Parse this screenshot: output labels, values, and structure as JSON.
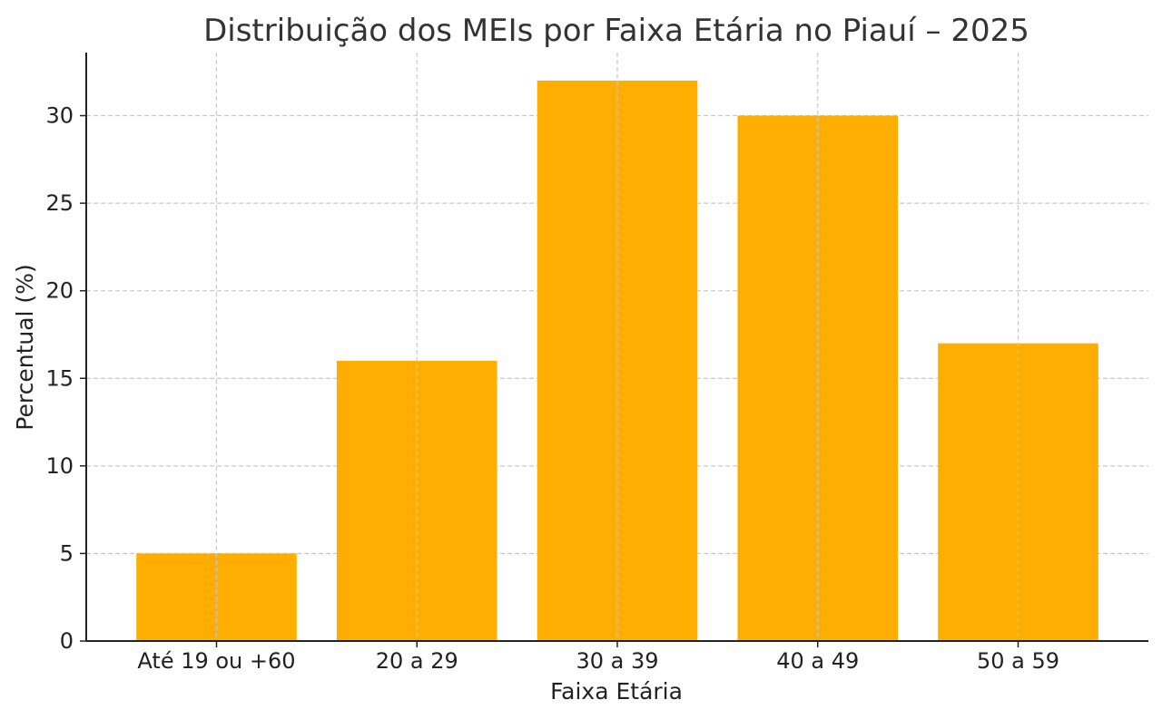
{
  "chart_data": {
    "type": "bar",
    "title": "Distribuição dos MEIs por Faixa Etária no Piauí – 2025",
    "xlabel": "Faixa Etária",
    "ylabel": "Percentual (%)",
    "categories": [
      "Até 19 ou +60",
      "20 a 29",
      "30 a 39",
      "40 a 49",
      "50 a 59"
    ],
    "values": [
      5,
      16,
      32,
      30,
      17
    ],
    "ylim": [
      0,
      33.6
    ],
    "yticks": [
      0,
      5,
      10,
      15,
      20,
      25,
      30
    ],
    "grid": true,
    "bar_color": "#FFAE00"
  }
}
